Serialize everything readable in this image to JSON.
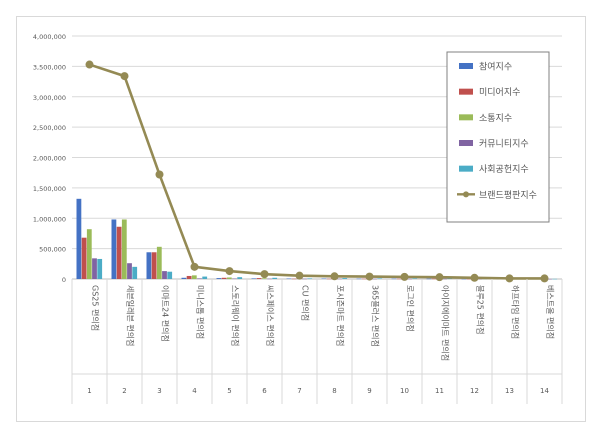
{
  "chart_data": {
    "type": "bar",
    "categories": [
      "GS25 편의점",
      "세븐일레븐 편의점",
      "이마트24 편의점",
      "미니스톱 편의점",
      "스토리웨이 편의점",
      "씨스페이스 편의점",
      "CU 편의점",
      "포시즌마트 편의점",
      "365플러스 편의점",
      "로그인 편의점",
      "아이지에이마트 편의점",
      "블루25 편의점",
      "하프타임 편의점",
      "베스트올 편의점"
    ],
    "index_labels": [
      "1",
      "2",
      "3",
      "4",
      "5",
      "6",
      "7",
      "8",
      "9",
      "10",
      "11",
      "12",
      "13",
      "14"
    ],
    "ylim": [
      0,
      4000000
    ],
    "yticks": [
      0,
      500000,
      1000000,
      1500000,
      2000000,
      2500000,
      3000000,
      3500000,
      4000000
    ],
    "ytick_labels": [
      "0",
      "500,000",
      "1,000,000",
      "1,500,000",
      "2,000,000",
      "2,500,000",
      "3,000,000",
      "3,500,000",
      "4,000,000"
    ],
    "grid": true,
    "legend_position": "top-right",
    "series": [
      {
        "name": "참여지수",
        "kind": "bar",
        "color": "#4472c4",
        "values": [
          1320000,
          980000,
          440000,
          20000,
          15000,
          10000,
          8000,
          8000,
          6000,
          6000,
          5000,
          3000,
          2000,
          2000
        ]
      },
      {
        "name": "미디어지수",
        "kind": "bar",
        "color": "#c0504d",
        "values": [
          680000,
          860000,
          440000,
          50000,
          20000,
          15000,
          5000,
          5000,
          5000,
          5000,
          5000,
          3000,
          2000,
          2000
        ]
      },
      {
        "name": "소통지수",
        "kind": "bar",
        "color": "#9bbb59",
        "values": [
          820000,
          980000,
          530000,
          60000,
          25000,
          12000,
          8000,
          8000,
          6000,
          6000,
          5000,
          3000,
          2000,
          2000
        ]
      },
      {
        "name": "커뮤니티지수",
        "kind": "bar",
        "color": "#8064a2",
        "values": [
          340000,
          260000,
          130000,
          10000,
          8000,
          6000,
          5000,
          5000,
          4000,
          4000,
          4000,
          2000,
          2000,
          2000
        ]
      },
      {
        "name": "사회공헌지수",
        "kind": "bar",
        "color": "#4bacc6",
        "values": [
          330000,
          200000,
          120000,
          40000,
          30000,
          20000,
          10000,
          15000,
          10000,
          10000,
          8000,
          5000,
          3000,
          3000
        ]
      },
      {
        "name": "브랜드평판지수",
        "kind": "line",
        "color": "#948a54",
        "values": [
          3530000,
          3340000,
          1720000,
          200000,
          130000,
          80000,
          55000,
          45000,
          40000,
          35000,
          30000,
          20000,
          10000,
          10000
        ]
      }
    ]
  }
}
